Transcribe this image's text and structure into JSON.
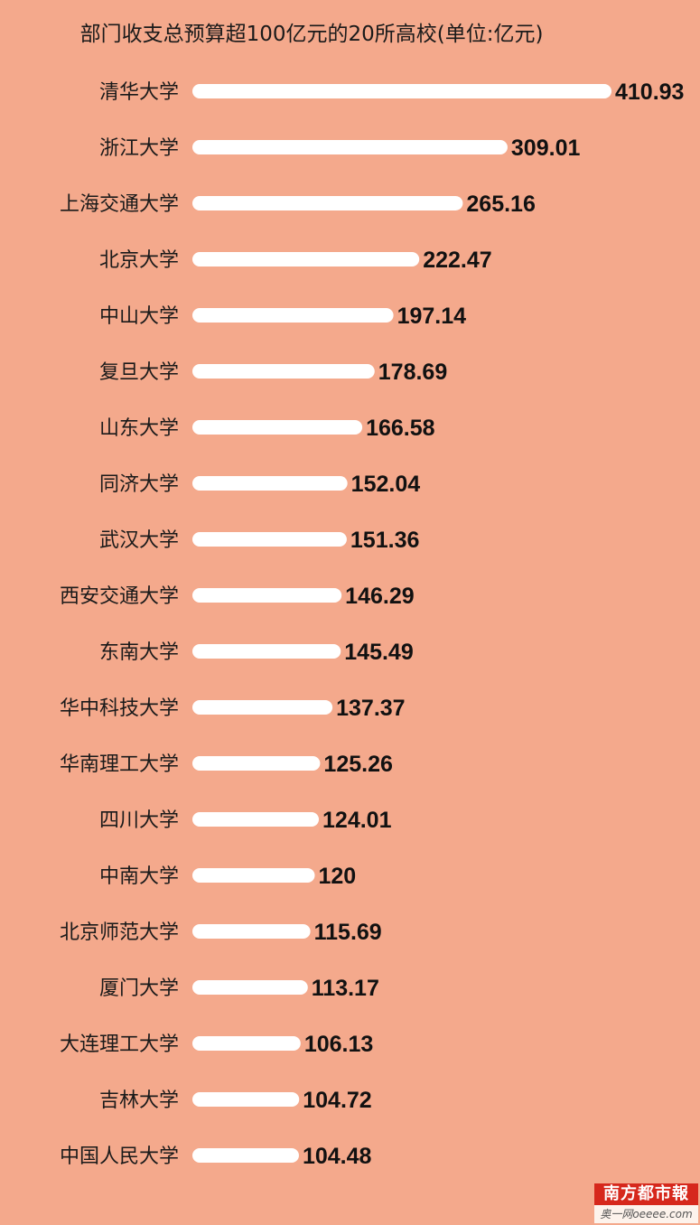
{
  "chart_data": {
    "type": "bar",
    "orientation": "horizontal",
    "title": "部门收支总预算超100亿元的20所高校(单位:亿元)",
    "categories": [
      "清华大学",
      "浙江大学",
      "上海交通大学",
      "北京大学",
      "中山大学",
      "复旦大学",
      "山东大学",
      "同济大学",
      "武汉大学",
      "西安交通大学",
      "东南大学",
      "华中科技大学",
      "华南理工大学",
      "四川大学",
      "中南大学",
      "北京师范大学",
      "厦门大学",
      "大连理工大学",
      "吉林大学",
      "中国人民大学"
    ],
    "values": [
      410.93,
      309.01,
      265.16,
      222.47,
      197.14,
      178.69,
      166.58,
      152.04,
      151.36,
      146.29,
      145.49,
      137.37,
      125.26,
      124.01,
      120,
      115.69,
      113.17,
      106.13,
      104.72,
      104.48
    ],
    "value_labels": [
      "410.93",
      "309.01",
      "265.16",
      "222.47",
      "197.14",
      "178.69",
      "166.58",
      "152.04",
      "151.36",
      "146.29",
      "145.49",
      "137.37",
      "125.26",
      "124.01",
      "120",
      "115.69",
      "113.17",
      "106.13",
      "104.72",
      "104.48"
    ],
    "bar_color": "#ffffff",
    "background_color": "#f4a98c",
    "grid": false,
    "legend": "none"
  },
  "logo": {
    "top_text": "南方都市報",
    "bottom_text": "奥一网oeeee.com"
  }
}
